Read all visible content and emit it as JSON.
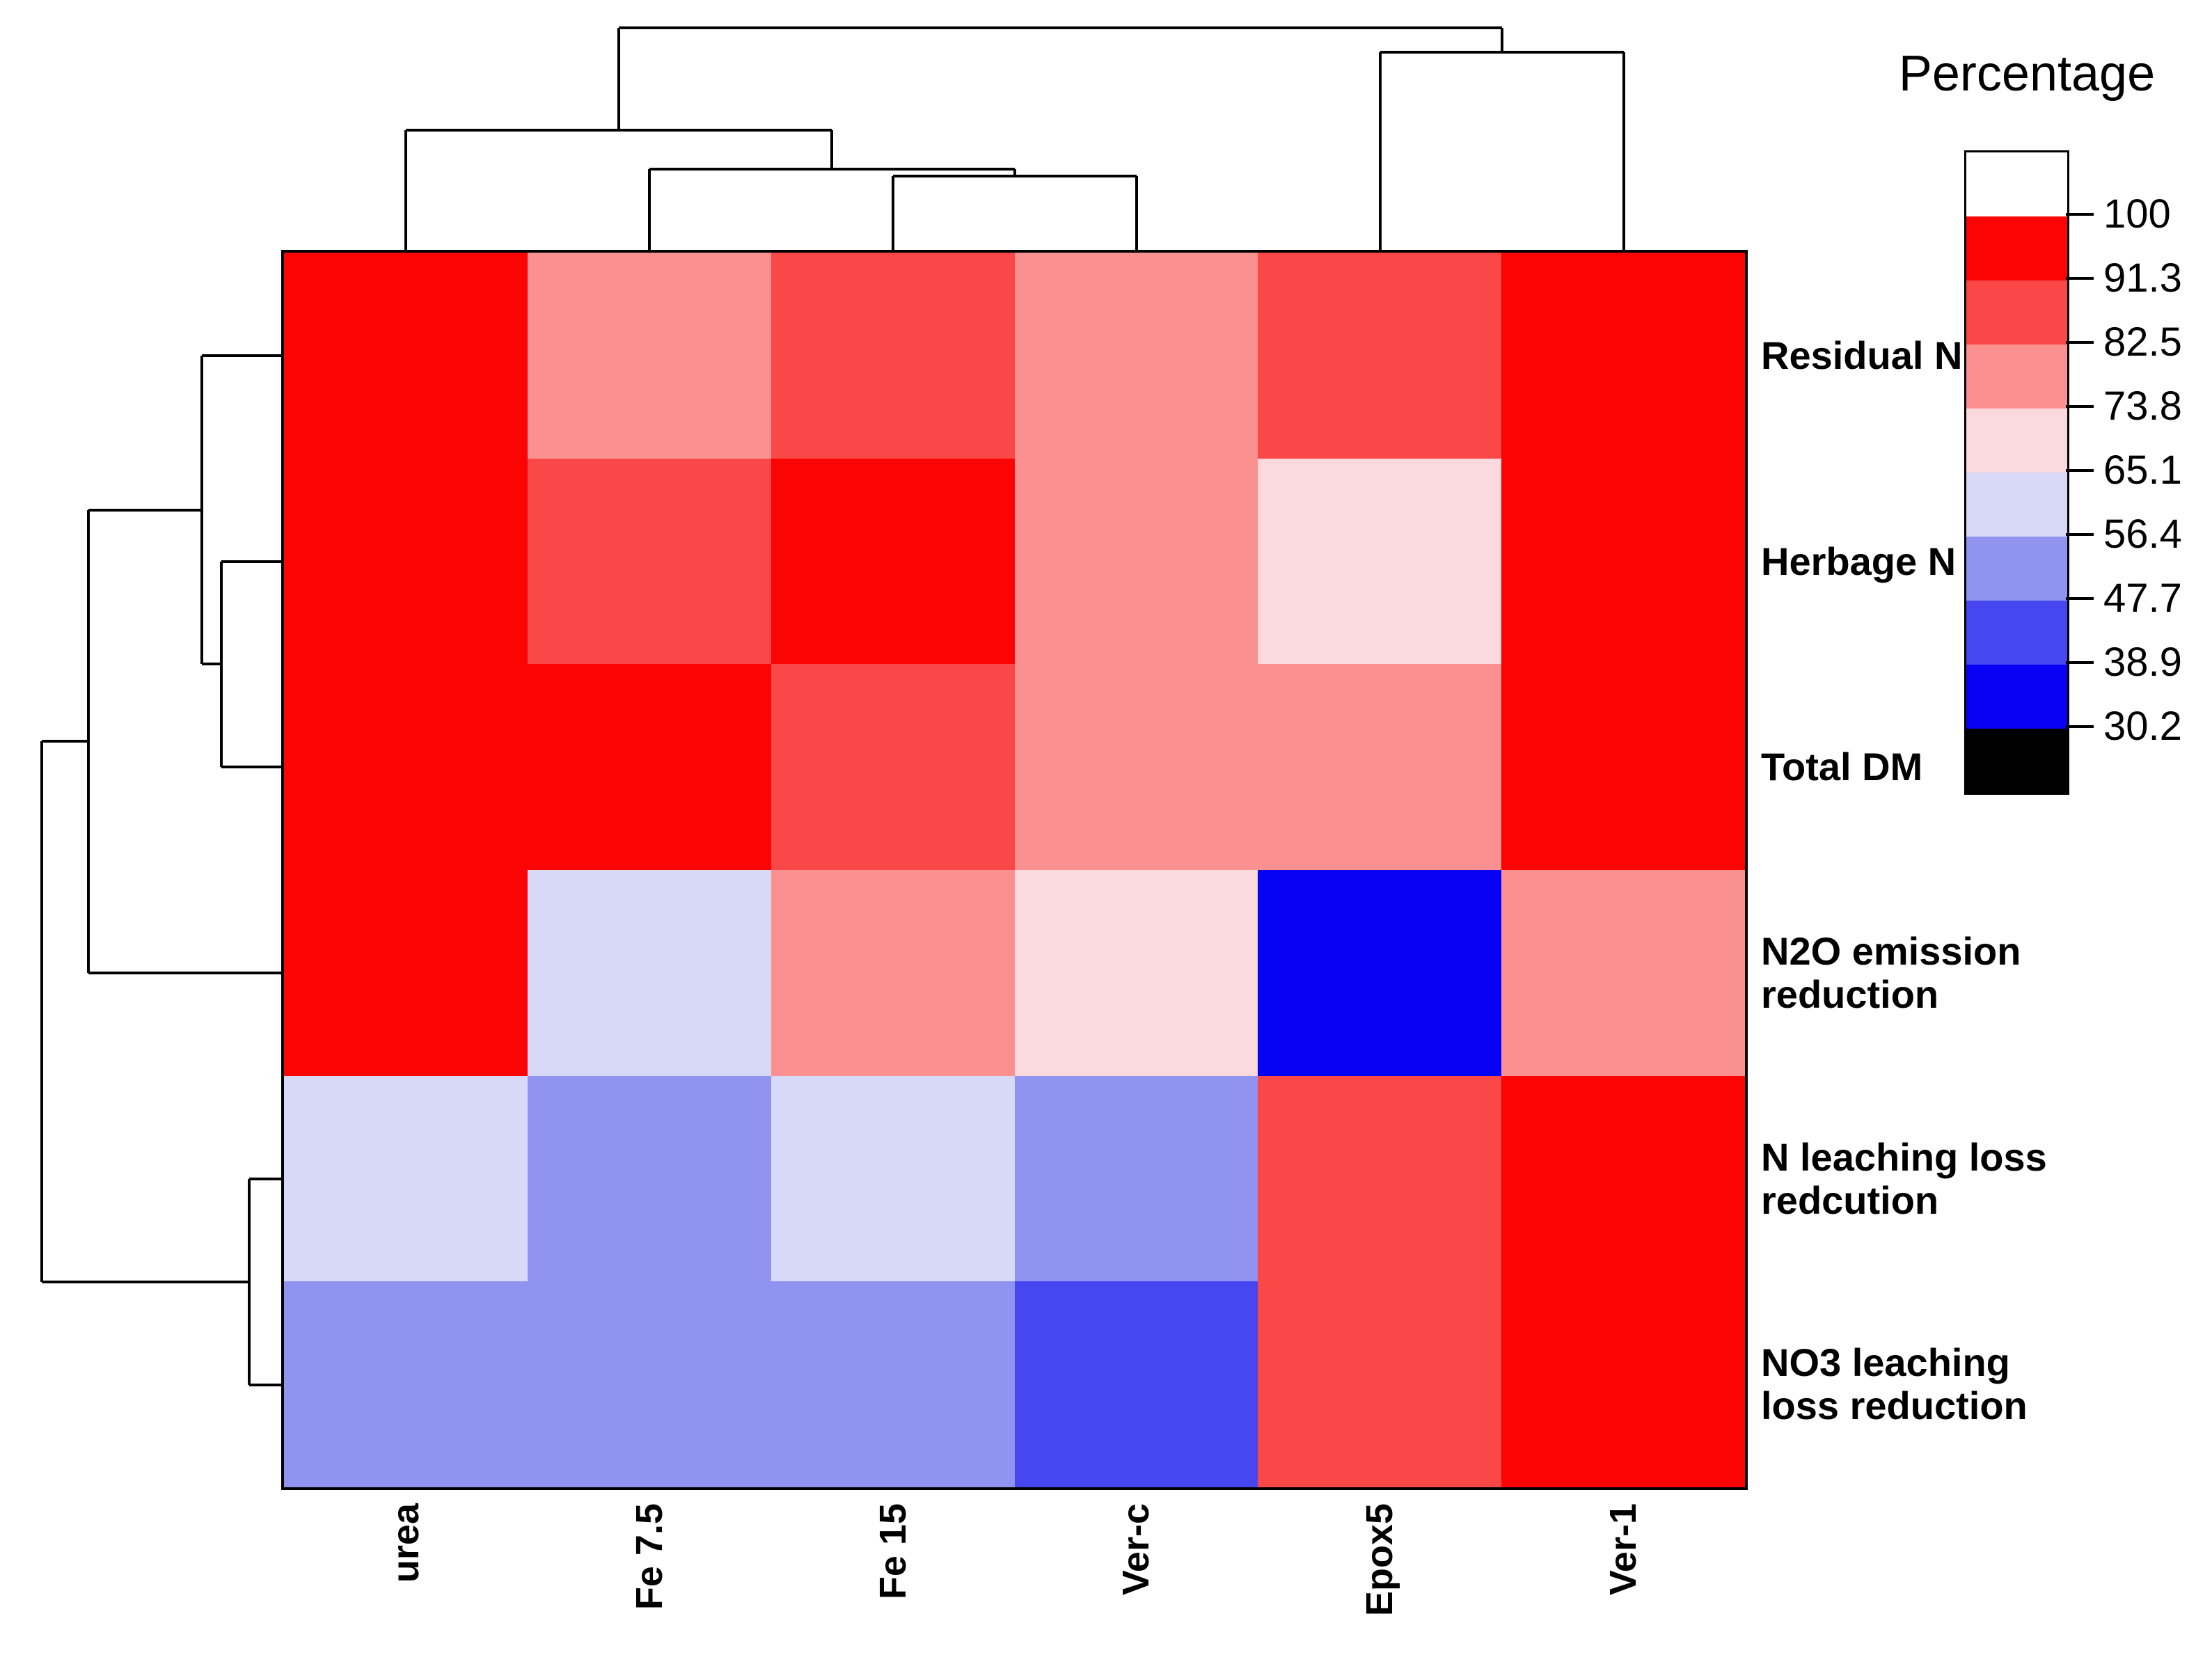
{
  "figure": {
    "type": "clustered heatmap"
  },
  "legend": {
    "title": "Percentage",
    "ticks": [
      "100",
      "91.3",
      "82.5",
      "73.8",
      "65.1",
      "56.4",
      "47.7",
      "38.9",
      "30.2"
    ],
    "colors_top_to_bottom": [
      "#FFFFFF",
      "#FA0404",
      "#FA4747",
      "#FB9090",
      "#FBD9DC",
      "#D8D9F6",
      "#9094F0",
      "#4747F1",
      "#0600F5",
      "#000000"
    ]
  },
  "chart_data": {
    "type": "heatmap",
    "title": "Percentage",
    "legend_position": "right",
    "columns": [
      "urea",
      "Fe 7.5",
      "Fe 15",
      "Ver-c",
      "Epox5",
      "Ver-1"
    ],
    "rows": [
      "Residual N",
      "Herbage N",
      "Total DM",
      "N2O emission reduction",
      "N leaching loss redcution",
      "NO3 leaching loss reduction"
    ],
    "row_label_lines": [
      [
        "Residual N"
      ],
      [
        "Herbage N"
      ],
      [
        "Total DM"
      ],
      [
        "N2O emission",
        "reduction"
      ],
      [
        "N leaching loss",
        "redcution"
      ],
      [
        "NO3 leaching",
        "loss reduction"
      ]
    ],
    "color_bins": [
      {
        "range": "91.3-100",
        "color": "#FA0404"
      },
      {
        "range": "82.5-91.3",
        "color": "#FA4747"
      },
      {
        "range": "73.8-82.5",
        "color": "#FB9090"
      },
      {
        "range": "65.1-73.8",
        "color": "#FBD9DC"
      },
      {
        "range": "56.4-65.1",
        "color": "#D8D9F6"
      },
      {
        "range": "47.7-56.4",
        "color": "#9094F0"
      },
      {
        "range": "38.9-47.7",
        "color": "#4747F1"
      },
      {
        "range": "30.2-38.9",
        "color": "#0600F5"
      },
      {
        "range": "<30.2",
        "color": "#000000"
      }
    ],
    "cell_colors": [
      [
        "#FA0404",
        "#FB9090",
        "#FA4747",
        "#FB9090",
        "#FA4747",
        "#FA0404"
      ],
      [
        "#FA0404",
        "#FA4747",
        "#FA0404",
        "#FB9090",
        "#FBD9DC",
        "#FA0404"
      ],
      [
        "#FA0404",
        "#FA0404",
        "#FA4747",
        "#FB9090",
        "#FB9090",
        "#FA0404"
      ],
      [
        "#FA0404",
        "#D8D9F6",
        "#FB9090",
        "#FBD9DC",
        "#0600F5",
        "#FB9090"
      ],
      [
        "#D8D9F6",
        "#9094F0",
        "#D8D9F6",
        "#9094F0",
        "#FA4747",
        "#FA0404"
      ],
      [
        "#9094F0",
        "#9094F0",
        "#9094F0",
        "#4747F1",
        "#FA4747",
        "#FA0404"
      ]
    ],
    "values_estimated_from_color_bins": [
      [
        95.7,
        78.2,
        86.9,
        78.2,
        86.9,
        95.7
      ],
      [
        95.7,
        86.9,
        95.7,
        78.2,
        69.5,
        95.7
      ],
      [
        95.7,
        95.7,
        86.9,
        78.2,
        78.2,
        95.7
      ],
      [
        95.7,
        60.8,
        78.2,
        69.5,
        34.6,
        78.2
      ],
      [
        60.8,
        52.1,
        60.8,
        52.1,
        86.9,
        95.7
      ],
      [
        52.1,
        52.1,
        52.1,
        43.3,
        86.9,
        95.7
      ]
    ],
    "column_dendrogram_topology": "((urea,(Fe 7.5,(Fe 15,Ver-c))),(Epox5,Ver-1))",
    "row_dendrogram_topology": "(((Residual N,(Herbage N,Total DM)),N2O emission reduction),(N leaching loss redcution,NO3 leaching loss reduction))",
    "dendrograms": {
      "column_segments": [
        [
          889,
          40,
          2158,
          40
        ],
        [
          889,
          40,
          889,
          187
        ],
        [
          2158,
          40,
          2158,
          75
        ],
        [
          583,
          187,
          1195,
          187
        ],
        [
          583,
          187,
          583,
          363
        ],
        [
          1195,
          187,
          1195,
          243
        ],
        [
          933,
          243,
          1458,
          243
        ],
        [
          933,
          243,
          933,
          363
        ],
        [
          1458,
          243,
          1458,
          253
        ],
        [
          1283,
          253,
          1633,
          253
        ],
        [
          1283,
          253,
          1283,
          363
        ],
        [
          1633,
          253,
          1633,
          363
        ],
        [
          1983,
          75,
          2333,
          75
        ],
        [
          1983,
          75,
          1983,
          363
        ],
        [
          2333,
          75,
          2333,
          363
        ]
      ],
      "row_segments": [
        [
          60,
          1065,
          60,
          1842
        ],
        [
          60,
          1065,
          127,
          1065
        ],
        [
          60,
          1842,
          358,
          1842
        ],
        [
          127,
          733,
          127,
          1398
        ],
        [
          127,
          733,
          290,
          733
        ],
        [
          127,
          1398,
          408,
          1398
        ],
        [
          290,
          511,
          290,
          954
        ],
        [
          290,
          511,
          408,
          511
        ],
        [
          290,
          954,
          318,
          954
        ],
        [
          318,
          807,
          318,
          1102
        ],
        [
          318,
          807,
          408,
          807
        ],
        [
          318,
          1102,
          408,
          1102
        ],
        [
          358,
          1694,
          358,
          1990
        ],
        [
          358,
          1694,
          408,
          1694
        ],
        [
          358,
          1990,
          408,
          1990
        ]
      ]
    }
  }
}
